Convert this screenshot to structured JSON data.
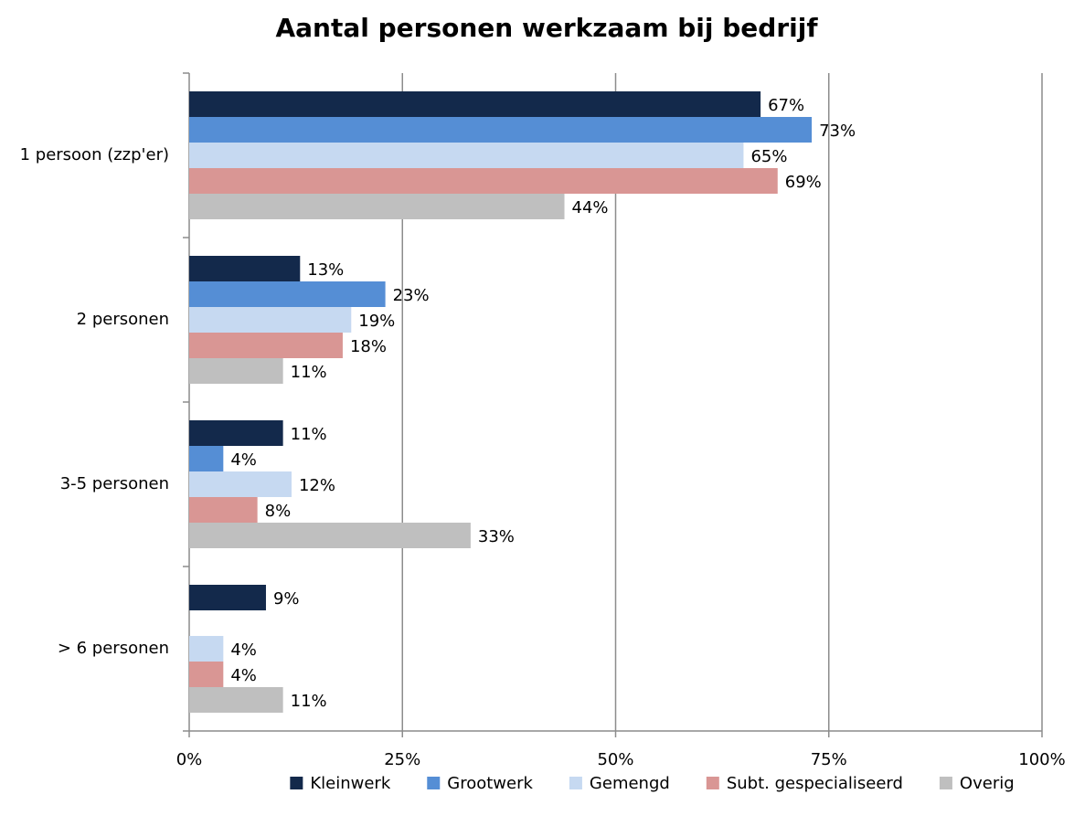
{
  "chart_data": {
    "type": "hbar",
    "title": "Aantal personen werkzaam bij bedrijf",
    "categories": [
      "1 persoon (zzp'er)",
      "2 personen",
      "3-5 personen",
      "> 6 personen"
    ],
    "series": [
      {
        "name": "Kleinwerk",
        "color": "#13294b",
        "values": [
          67,
          13,
          11,
          9
        ],
        "value_labels": [
          "67%",
          "13%",
          "11%",
          "9%"
        ]
      },
      {
        "name": "Grootwerk",
        "color": "#558ed5",
        "values": [
          73,
          23,
          4,
          null
        ],
        "value_labels": [
          "73%",
          "23%",
          "4%",
          null
        ]
      },
      {
        "name": "Gemengd",
        "color": "#c6d9f1",
        "values": [
          65,
          19,
          12,
          4
        ],
        "value_labels": [
          "65%",
          "19%",
          "12%",
          "4%"
        ]
      },
      {
        "name": "Subt. gespecialiseerd",
        "color": "#d99694",
        "values": [
          69,
          18,
          8,
          4
        ],
        "value_labels": [
          "69%",
          "18%",
          "8%",
          "4%"
        ]
      },
      {
        "name": "Overig",
        "color": "#bfbfbf",
        "values": [
          44,
          11,
          33,
          11
        ],
        "value_labels": [
          "44%",
          "11%",
          "33%",
          "11%"
        ]
      }
    ],
    "xlim": [
      0,
      100
    ],
    "xticks": [
      {
        "value": 0,
        "label": "0%"
      },
      {
        "value": 25,
        "label": "25%"
      },
      {
        "value": 50,
        "label": "50%"
      },
      {
        "value": 75,
        "label": "75%"
      },
      {
        "value": 100,
        "label": "100%"
      }
    ],
    "grid": true,
    "legend": "bottom"
  }
}
